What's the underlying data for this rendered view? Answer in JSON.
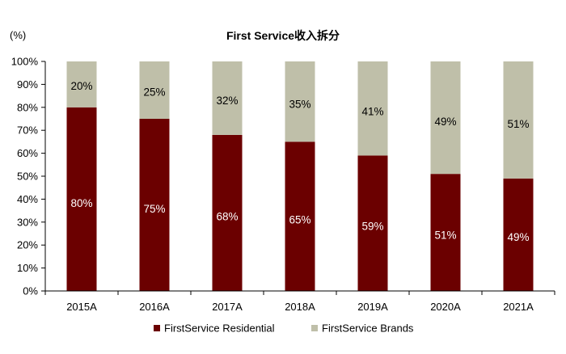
{
  "chart_data": {
    "type": "bar",
    "stacked": true,
    "title": "First Service收入拆分",
    "ylabel": "(%)",
    "xlabel": "",
    "ylim": [
      0,
      100
    ],
    "yticks": [
      0,
      10,
      20,
      30,
      40,
      50,
      60,
      70,
      80,
      90,
      100
    ],
    "ytick_format": "{v}%",
    "categories": [
      "2015A",
      "2016A",
      "2017A",
      "2018A",
      "2019A",
      "2020A",
      "2021A"
    ],
    "series": [
      {
        "name": "FirstService Residential",
        "color": "#6b0000",
        "label_color": "#ffffff",
        "values": [
          80,
          75,
          68,
          65,
          59,
          51,
          49
        ]
      },
      {
        "name": "FirstService Brands",
        "color": "#bfbfa9",
        "label_color": "#000000",
        "values": [
          20,
          25,
          32,
          35,
          41,
          49,
          51
        ]
      }
    ],
    "data_label_format": "{v}%",
    "grid": false,
    "legend": "bottom-center"
  }
}
